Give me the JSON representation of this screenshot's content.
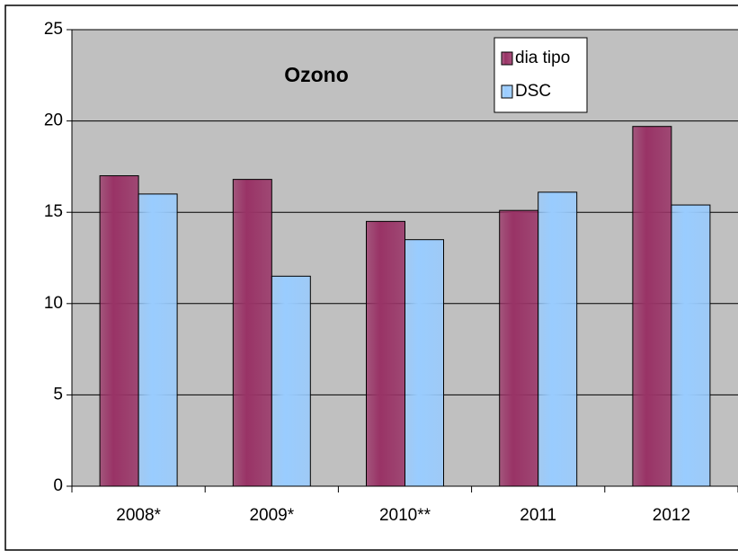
{
  "chart_data": {
    "type": "bar",
    "title": "Ozono",
    "categories": [
      "2008*",
      "2009*",
      "2010**",
      "2011",
      "2012"
    ],
    "series": [
      {
        "name": "dia tipo",
        "color": "#993366",
        "values": [
          17.0,
          16.8,
          14.5,
          15.1,
          19.7
        ]
      },
      {
        "name": "DSC",
        "color": "#99ccff",
        "values": [
          16.0,
          11.5,
          13.5,
          16.1,
          15.4
        ]
      }
    ],
    "ylim": [
      0,
      25
    ],
    "yticks": [
      0,
      5,
      10,
      15,
      20,
      25
    ],
    "grid": true,
    "legend": "top-right"
  }
}
